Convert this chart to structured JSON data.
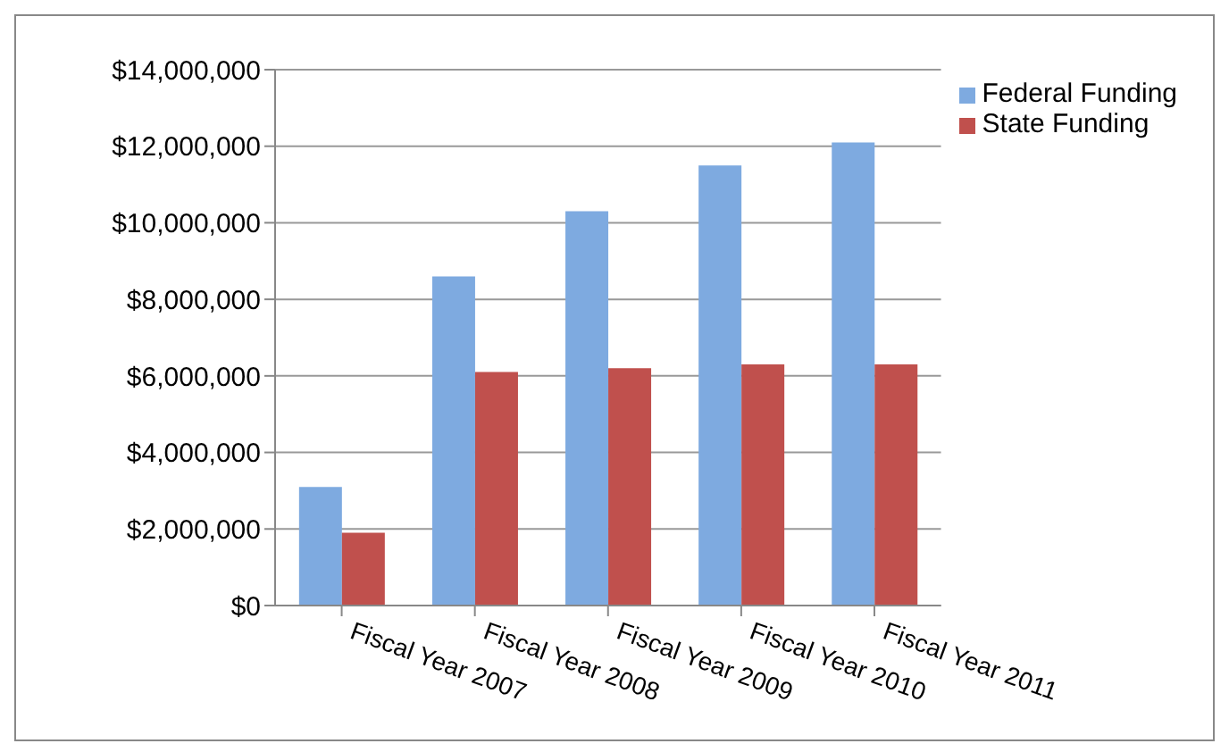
{
  "chart_data": {
    "type": "bar",
    "categories": [
      "Fiscal Year 2007",
      "Fiscal Year 2008",
      "Fiscal Year 2009",
      "Fiscal Year 2010",
      "Fiscal Year 2011"
    ],
    "series": [
      {
        "name": "Federal Funding",
        "color": "#7eaae0",
        "values": [
          3100000,
          8600000,
          10300000,
          11500000,
          12100000
        ]
      },
      {
        "name": "State Funding",
        "color": "#c0504d",
        "values": [
          1900000,
          6100000,
          6200000,
          6300000,
          6300000
        ]
      }
    ],
    "ylim": [
      0,
      14000000
    ],
    "yticks": [
      {
        "value": 0,
        "label": "$0"
      },
      {
        "value": 2000000,
        "label": "$2,000,000"
      },
      {
        "value": 4000000,
        "label": "$4,000,000"
      },
      {
        "value": 6000000,
        "label": "$6,000,000"
      },
      {
        "value": 8000000,
        "label": "$8,000,000"
      },
      {
        "value": 10000000,
        "label": "$10,000,000"
      },
      {
        "value": 12000000,
        "label": "$12,000,000"
      },
      {
        "value": 14000000,
        "label": "$14,000,000"
      }
    ],
    "grid": "y",
    "legend": "right"
  }
}
